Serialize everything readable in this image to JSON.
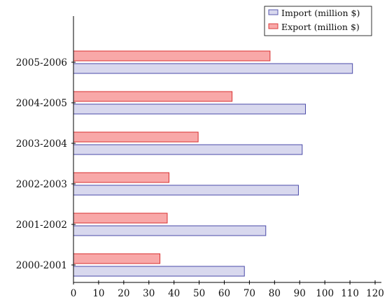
{
  "chart_data": {
    "type": "bar",
    "orientation": "horizontal",
    "categories": [
      "2000-2001",
      "2001-2002",
      "2002-2003",
      "2003-2004",
      "2004-2005",
      "2005-2006"
    ],
    "series": [
      {
        "name": "Import (million $)",
        "values": [
          68,
          76.5,
          89.5,
          91,
          92.3,
          111
        ],
        "fill": "#d8d8ee",
        "stroke": "#4a4aa8"
      },
      {
        "name": "Export (million $)",
        "values": [
          34.4,
          37.3,
          38,
          49.6,
          63.1,
          78.2
        ],
        "fill": "#f8a8a8",
        "stroke": "#d83030"
      }
    ],
    "xticks": [
      0,
      10,
      20,
      30,
      40,
      50,
      60,
      70,
      80,
      90,
      100,
      110,
      120
    ],
    "xlim": [
      0,
      121
    ],
    "title": "",
    "xlabel": "",
    "ylabel": "",
    "grid": false,
    "legend_position": "top-right"
  }
}
